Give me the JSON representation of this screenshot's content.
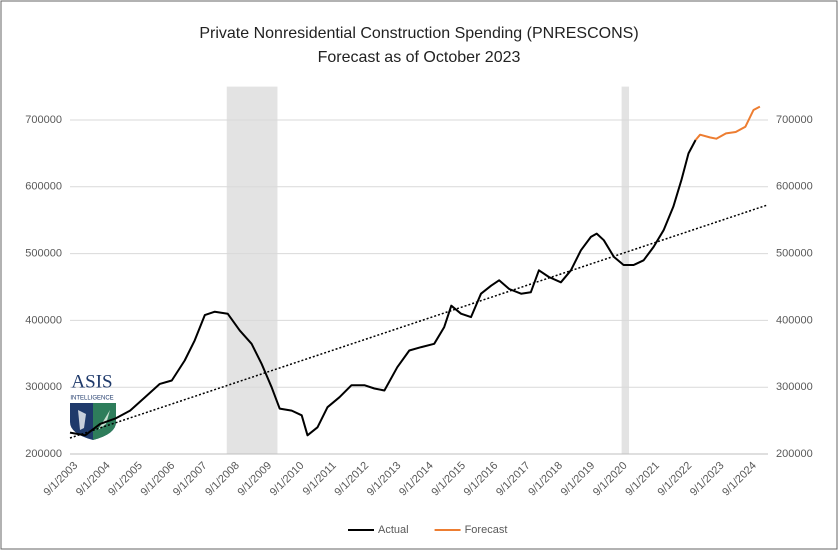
{
  "chart_data": {
    "type": "line",
    "title": "Private Nonresidential Construction Spending (PNRESCONS)",
    "subtitle": "Forecast as of October 2023",
    "series": [
      {
        "name": "Actual",
        "color": "#000000",
        "x": [
          2003.6,
          2004.07,
          2004.53,
          2005.0,
          2005.46,
          2005.92,
          2006.38,
          2006.75,
          2007.15,
          2007.46,
          2007.77,
          2008.08,
          2008.48,
          2008.85,
          2009.22,
          2009.53,
          2009.84,
          2010.09,
          2010.46,
          2010.77,
          2010.95,
          2011.26,
          2011.57,
          2011.94,
          2012.31,
          2012.71,
          2013.02,
          2013.33,
          2013.73,
          2014.1,
          2014.47,
          2014.87,
          2015.18,
          2015.4,
          2015.7,
          2016.01,
          2016.32,
          2016.63,
          2016.88,
          2017.19,
          2017.56,
          2017.86,
          2018.11,
          2018.42,
          2018.79,
          2019.1,
          2019.41,
          2019.72,
          2019.9,
          2020.12,
          2020.43,
          2020.73,
          2021.04,
          2021.35,
          2021.66,
          2021.97,
          2022.27,
          2022.52,
          2022.74,
          2022.96
        ],
        "values": [
          232000,
          228000,
          245000,
          253000,
          265000,
          285000,
          305000,
          310000,
          340000,
          370000,
          408000,
          413000,
          410000,
          385000,
          365000,
          335000,
          300000,
          268000,
          265000,
          258000,
          228000,
          240000,
          270000,
          285000,
          303000,
          303000,
          298000,
          295000,
          330000,
          355000,
          360000,
          365000,
          390000,
          422000,
          410000,
          405000,
          440000,
          452000,
          460000,
          447000,
          440000,
          442000,
          475000,
          465000,
          457000,
          475000,
          505000,
          525000,
          530000,
          520000,
          495000,
          483000,
          483000,
          490000,
          510000,
          535000,
          570000,
          610000,
          650000,
          670000
        ]
      },
      {
        "name": "Forecast",
        "color": "#ed7d31",
        "x": [
          2022.96,
          2023.1,
          2023.4,
          2023.6,
          2023.9,
          2024.2,
          2024.5,
          2024.75,
          2024.95
        ],
        "values": [
          670000,
          678000,
          674000,
          672000,
          680000,
          682000,
          690000,
          715000,
          720000
        ]
      }
    ],
    "trendline": {
      "x": [
        2003.6,
        2025.2
      ],
      "values": [
        224000,
        573000
      ]
    },
    "shaded_ranges": [
      [
        2008.45,
        2010.02
      ],
      [
        2020.67,
        2020.9
      ]
    ],
    "xlim": [
      2003.6,
      2025.2
    ],
    "xticks": [
      {
        "value": 2003.667,
        "label": "9/1/2003"
      },
      {
        "value": 2004.667,
        "label": "9/1/2004"
      },
      {
        "value": 2005.667,
        "label": "9/1/2005"
      },
      {
        "value": 2006.667,
        "label": "9/1/2006"
      },
      {
        "value": 2007.667,
        "label": "9/1/2007"
      },
      {
        "value": 2008.667,
        "label": "9/1/2008"
      },
      {
        "value": 2009.667,
        "label": "9/1/2009"
      },
      {
        "value": 2010.667,
        "label": "9/1/2010"
      },
      {
        "value": 2011.667,
        "label": "9/1/2011"
      },
      {
        "value": 2012.667,
        "label": "9/1/2012"
      },
      {
        "value": 2013.667,
        "label": "9/1/2013"
      },
      {
        "value": 2014.667,
        "label": "9/1/2014"
      },
      {
        "value": 2015.667,
        "label": "9/1/2015"
      },
      {
        "value": 2016.667,
        "label": "9/1/2016"
      },
      {
        "value": 2017.667,
        "label": "9/1/2017"
      },
      {
        "value": 2018.667,
        "label": "9/1/2018"
      },
      {
        "value": 2019.667,
        "label": "9/1/2019"
      },
      {
        "value": 2020.667,
        "label": "9/1/2020"
      },
      {
        "value": 2021.667,
        "label": "9/1/2021"
      },
      {
        "value": 2022.667,
        "label": "9/1/2022"
      },
      {
        "value": 2023.667,
        "label": "9/1/2023"
      },
      {
        "value": 2024.667,
        "label": "9/1/2024"
      }
    ],
    "ylim": [
      200000,
      750000
    ],
    "yticks": [
      200000,
      300000,
      400000,
      500000,
      600000,
      700000
    ],
    "y2lim": [
      200000,
      750000
    ],
    "y2ticks": [
      200000,
      300000,
      400000,
      500000,
      600000,
      700000
    ],
    "grid": true,
    "legend": "bottom"
  },
  "logo": {
    "name": "ASIS",
    "tagline": "INTELLIGENCE"
  }
}
